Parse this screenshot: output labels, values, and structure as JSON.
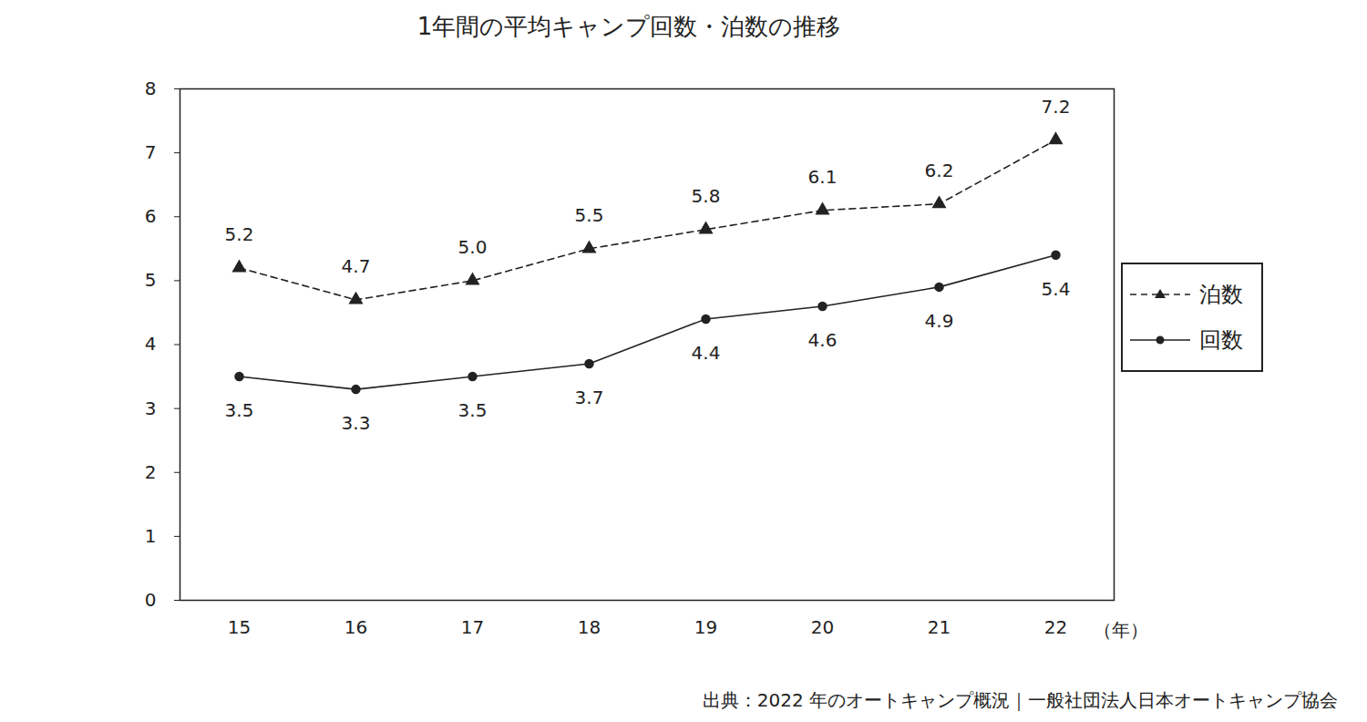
{
  "chart_data": {
    "type": "line",
    "title": "1年間の平均キャンプ回数・泊数の推移",
    "xlabel": "（年）",
    "caption": "出典：2022 年のオートキャンプ概況｜一般社団法人日本オートキャンプ協会",
    "categories": [
      "15",
      "16",
      "17",
      "18",
      "19",
      "20",
      "21",
      "22"
    ],
    "series": [
      {
        "name": "泊数",
        "color": "#222222",
        "marker": "triangle",
        "line_style": "dashed",
        "values": [
          5.2,
          4.7,
          5.0,
          5.5,
          5.8,
          6.1,
          6.2,
          7.2
        ],
        "value_labels": [
          "5.2",
          "4.7",
          "5.0",
          "5.5",
          "5.8",
          "6.1",
          "6.2",
          "7.2"
        ]
      },
      {
        "name": "回数",
        "color": "#222222",
        "marker": "circle",
        "line_style": "solid",
        "values": [
          3.5,
          3.3,
          3.5,
          3.7,
          4.4,
          4.6,
          4.9,
          5.4
        ],
        "value_labels": [
          "3.5",
          "3.3",
          "3.5",
          "3.7",
          "4.4",
          "4.6",
          "4.9",
          "5.4"
        ]
      }
    ],
    "ylim": [
      0,
      8
    ],
    "yticks": [
      0,
      1,
      2,
      3,
      4,
      5,
      6,
      7,
      8
    ],
    "grid": false,
    "legend": "right",
    "data_labels": true
  }
}
